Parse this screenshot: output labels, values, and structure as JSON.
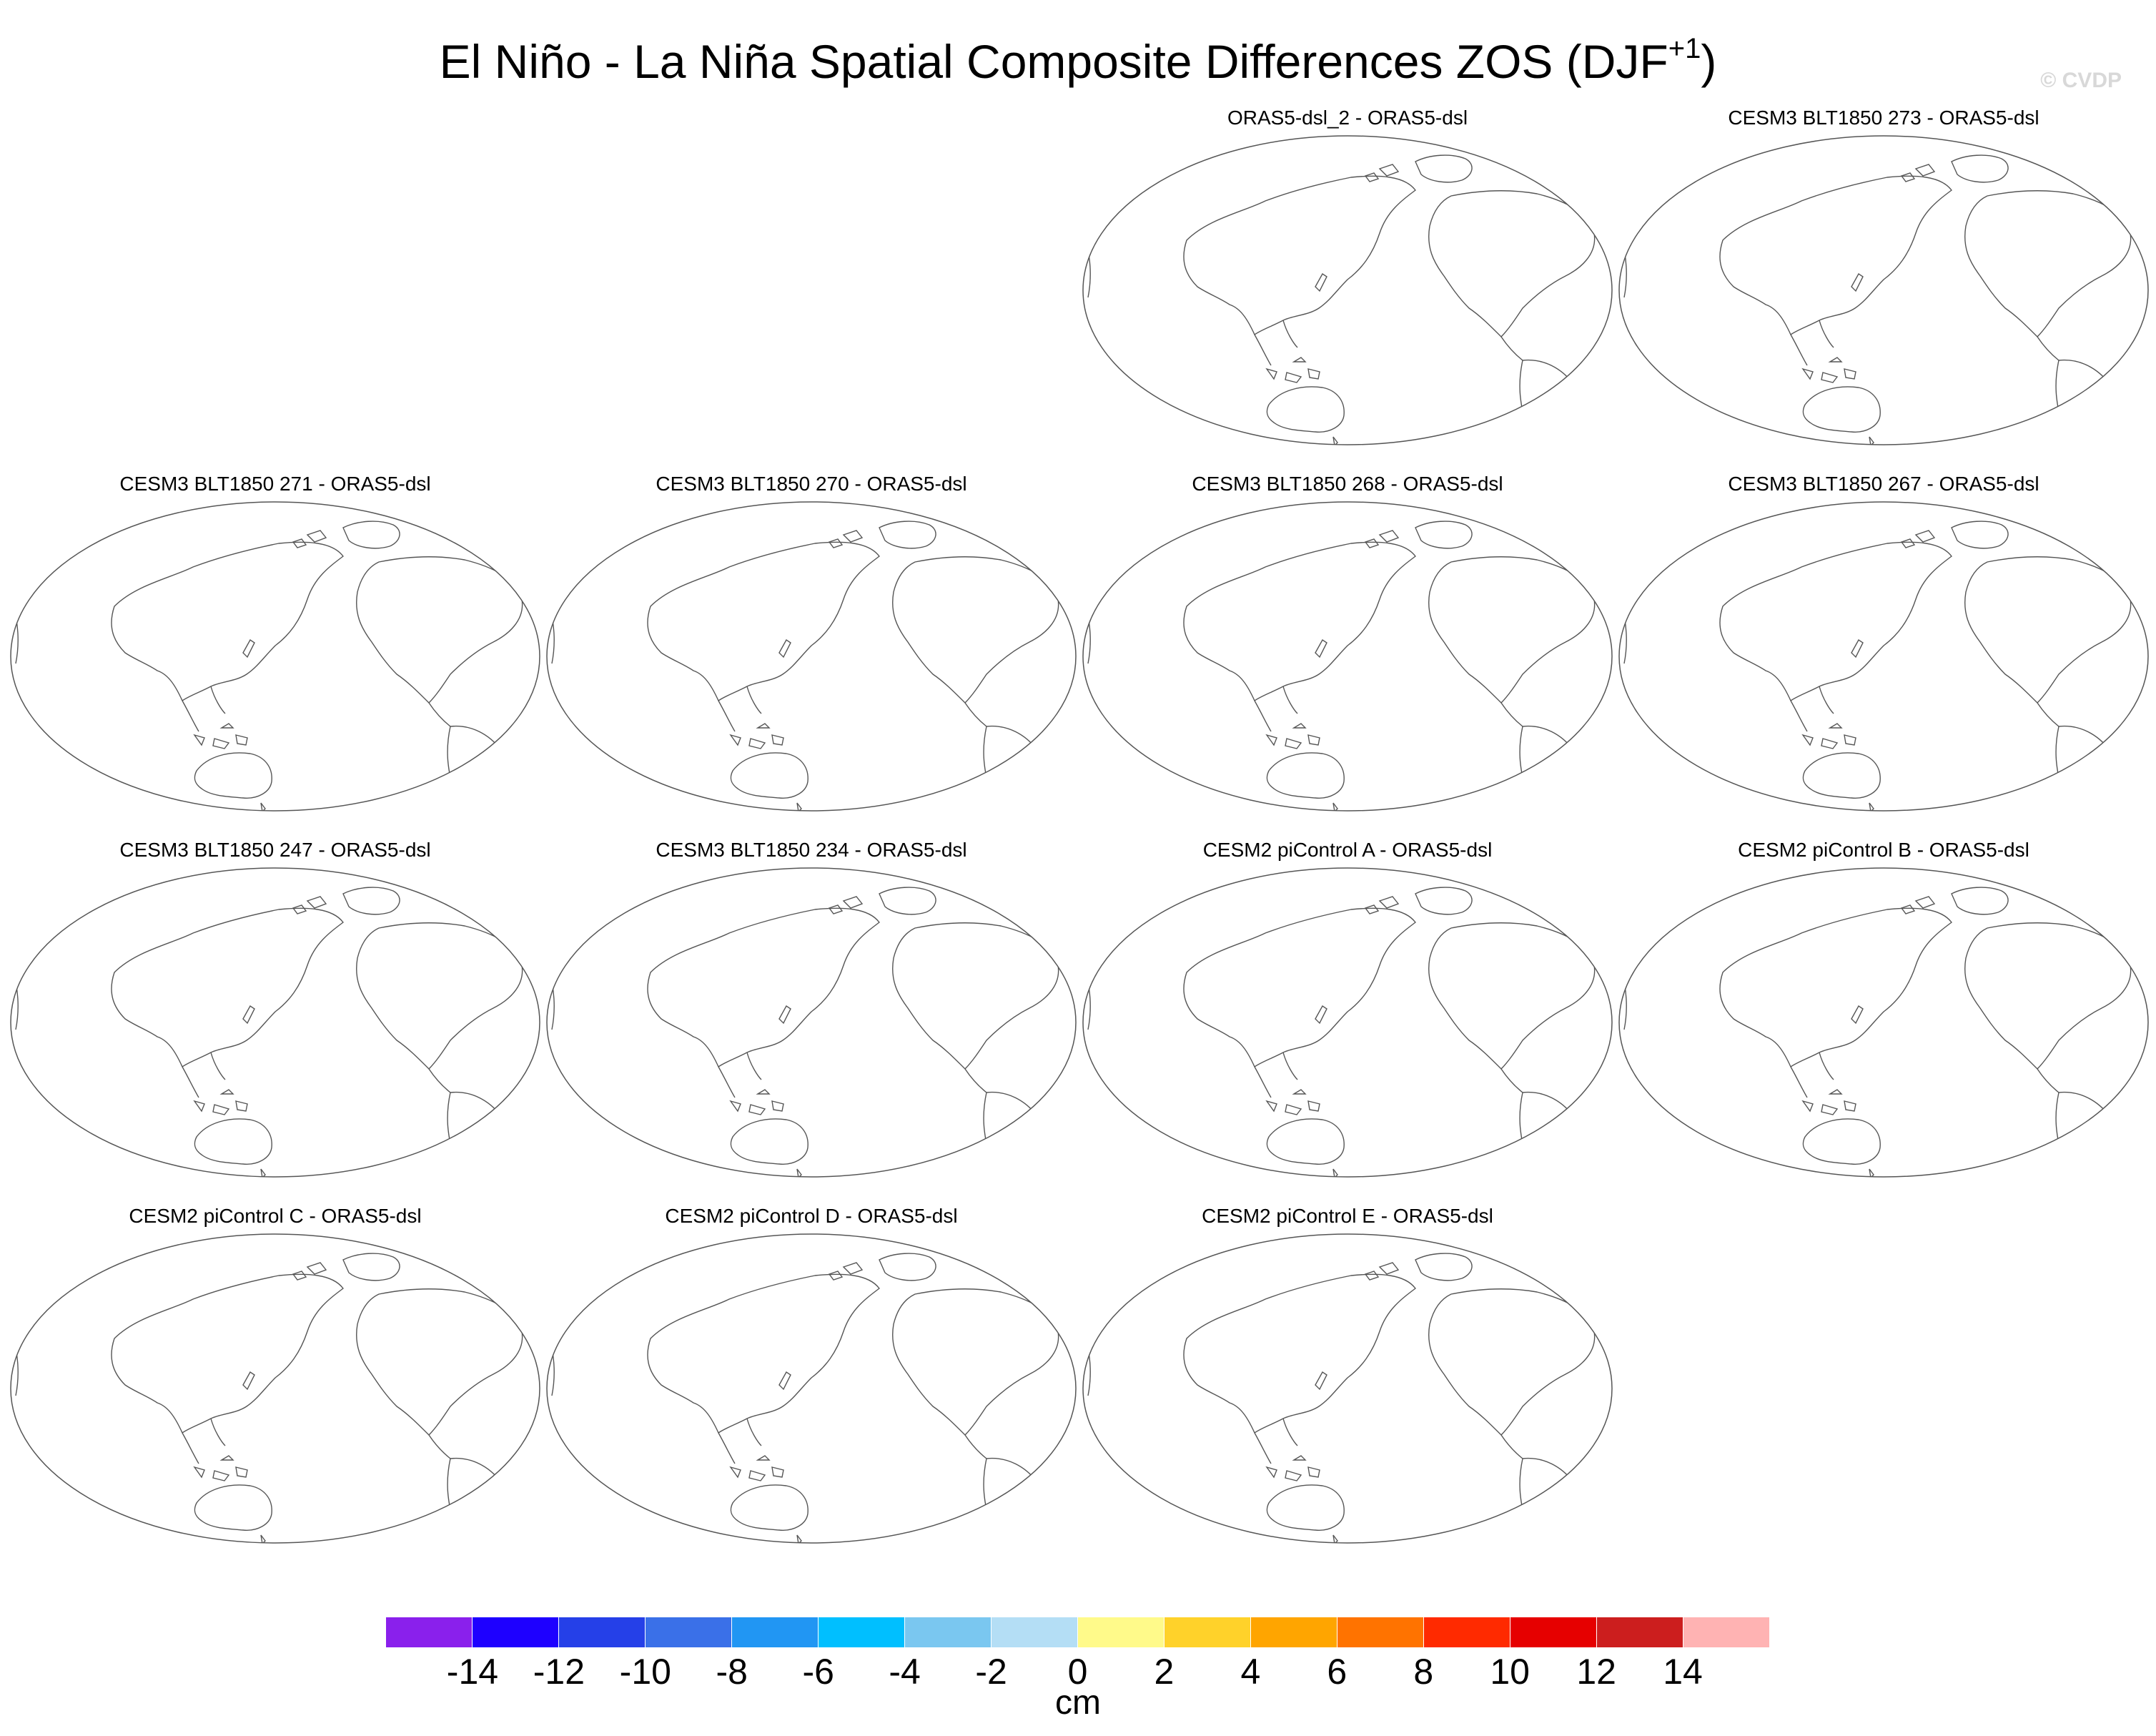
{
  "title": {
    "main": "El Niño - La Niña Spatial Composite Differences ZOS (DJF",
    "sup": "+1",
    "close": ")"
  },
  "watermark": "© CVDP",
  "panels": [
    {
      "title": "ORAS5-dsl_2 - ORAS5-dsl"
    },
    {
      "title": "CESM3 BLT1850 273 - ORAS5-dsl"
    },
    {
      "title": "CESM3 BLT1850 271 - ORAS5-dsl"
    },
    {
      "title": "CESM3 BLT1850 270 - ORAS5-dsl"
    },
    {
      "title": "CESM3 BLT1850 268 - ORAS5-dsl"
    },
    {
      "title": "CESM3 BLT1850 267 - ORAS5-dsl"
    },
    {
      "title": "CESM3 BLT1850 247 - ORAS5-dsl"
    },
    {
      "title": "CESM3 BLT1850 234 - ORAS5-dsl"
    },
    {
      "title": "CESM2 piControl A - ORAS5-dsl"
    },
    {
      "title": "CESM2 piControl B - ORAS5-dsl"
    },
    {
      "title": "CESM2 piControl C - ORAS5-dsl"
    },
    {
      "title": "CESM2 piControl D - ORAS5-dsl"
    },
    {
      "title": "CESM2 piControl E - ORAS5-dsl"
    }
  ],
  "colorbar": {
    "unit": "cm",
    "tick_labels": [
      "-14",
      "-12",
      "-10",
      "-8",
      "-6",
      "-4",
      "-2",
      "0",
      "2",
      "4",
      "6",
      "8",
      "10",
      "12",
      "14"
    ],
    "colors": [
      "#8a20ec",
      "#1e00ff",
      "#2540e8",
      "#3a70e8",
      "#2196f3",
      "#00bfff",
      "#7ac7f0",
      "#b4def5",
      "#fffa8a",
      "#ffd22a",
      "#ffa500",
      "#ff7300",
      "#ff2a00",
      "#e60000",
      "#cc1e1e",
      "#ffb3b3"
    ]
  }
}
